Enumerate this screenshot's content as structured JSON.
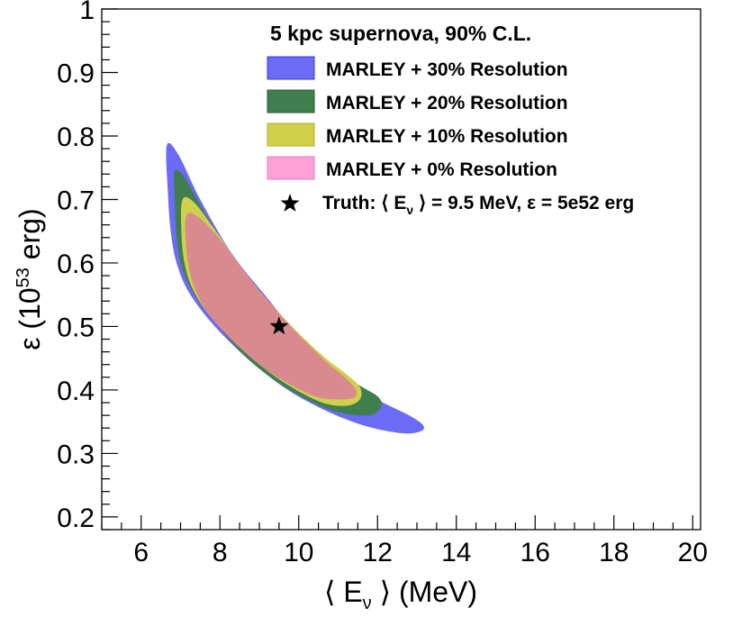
{
  "chart_data": {
    "type": "contour",
    "title": "5 kpc supernova, 90% C.L.",
    "xlabel_open": "⟨ E",
    "xlabel_sub": "ν",
    "xlabel_close": " ⟩ (MeV)",
    "ylabel_base": "ε (10",
    "ylabel_sup": "53",
    "ylabel_unit": " erg)",
    "xlim": [
      5,
      20.2
    ],
    "ylim": [
      0.18,
      1.0
    ],
    "xticks": [
      6,
      8,
      10,
      12,
      14,
      16,
      18,
      20
    ],
    "xtick_labels": [
      "6",
      "8",
      "10",
      "12",
      "14",
      "16",
      "18",
      "20"
    ],
    "yticks": [
      0.2,
      0.3,
      0.4,
      0.5,
      0.6,
      0.7,
      0.8,
      0.9,
      1.0
    ],
    "ytick_labels": [
      "0.2",
      "0.3",
      "0.4",
      "0.5",
      "0.6",
      "0.7",
      "0.8",
      "0.9",
      "1"
    ],
    "grid": false,
    "legend_position": "top-right",
    "series": [
      {
        "name": "MARLEY + 30% Resolution",
        "color": "#6b6bf7",
        "contour": [
          [
            6.65,
            0.785
          ],
          [
            6.95,
            0.77
          ],
          [
            7.5,
            0.7
          ],
          [
            8.3,
            0.615
          ],
          [
            9.2,
            0.545
          ],
          [
            10.2,
            0.47
          ],
          [
            11.2,
            0.42
          ],
          [
            12.0,
            0.385
          ],
          [
            12.8,
            0.36
          ],
          [
            13.15,
            0.345
          ],
          [
            13.1,
            0.335
          ],
          [
            12.6,
            0.332
          ],
          [
            11.6,
            0.345
          ],
          [
            10.6,
            0.37
          ],
          [
            9.6,
            0.405
          ],
          [
            8.6,
            0.455
          ],
          [
            7.8,
            0.505
          ],
          [
            7.2,
            0.555
          ],
          [
            6.9,
            0.6
          ],
          [
            6.75,
            0.65
          ],
          [
            6.68,
            0.71
          ]
        ]
      },
      {
        "name": "MARLEY + 20% Resolution",
        "color": "#3f7f4f",
        "contour": [
          [
            6.85,
            0.745
          ],
          [
            7.1,
            0.735
          ],
          [
            7.6,
            0.68
          ],
          [
            8.4,
            0.605
          ],
          [
            9.3,
            0.535
          ],
          [
            10.2,
            0.475
          ],
          [
            11.0,
            0.43
          ],
          [
            11.6,
            0.405
          ],
          [
            12.0,
            0.39
          ],
          [
            12.1,
            0.375
          ],
          [
            11.8,
            0.36
          ],
          [
            11.0,
            0.365
          ],
          [
            10.2,
            0.385
          ],
          [
            9.4,
            0.415
          ],
          [
            8.6,
            0.455
          ],
          [
            7.9,
            0.505
          ],
          [
            7.4,
            0.545
          ],
          [
            7.05,
            0.59
          ],
          [
            6.9,
            0.64
          ],
          [
            6.85,
            0.7
          ]
        ]
      },
      {
        "name": "MARLEY + 10% Resolution",
        "color": "#d0d04a",
        "contour": [
          [
            7.05,
            0.7
          ],
          [
            7.35,
            0.695
          ],
          [
            7.9,
            0.65
          ],
          [
            8.7,
            0.58
          ],
          [
            9.6,
            0.515
          ],
          [
            10.5,
            0.46
          ],
          [
            11.2,
            0.425
          ],
          [
            11.55,
            0.405
          ],
          [
            11.55,
            0.385
          ],
          [
            11.2,
            0.375
          ],
          [
            10.6,
            0.38
          ],
          [
            9.8,
            0.405
          ],
          [
            9.0,
            0.44
          ],
          [
            8.3,
            0.48
          ],
          [
            7.7,
            0.52
          ],
          [
            7.3,
            0.56
          ],
          [
            7.1,
            0.6
          ],
          [
            7.02,
            0.65
          ]
        ]
      },
      {
        "name": "MARLEY + 0% Resolution",
        "color": "#d88a8f",
        "legend_color": "#ff9fd6",
        "contour": [
          [
            7.15,
            0.675
          ],
          [
            7.5,
            0.67
          ],
          [
            8.1,
            0.63
          ],
          [
            8.9,
            0.565
          ],
          [
            9.8,
            0.5
          ],
          [
            10.6,
            0.45
          ],
          [
            11.2,
            0.418
          ],
          [
            11.45,
            0.4
          ],
          [
            11.4,
            0.388
          ],
          [
            11.0,
            0.385
          ],
          [
            10.4,
            0.39
          ],
          [
            9.6,
            0.415
          ],
          [
            8.9,
            0.445
          ],
          [
            8.2,
            0.485
          ],
          [
            7.65,
            0.525
          ],
          [
            7.3,
            0.57
          ],
          [
            7.15,
            0.62
          ]
        ]
      }
    ],
    "truth": {
      "x": 9.5,
      "y": 0.5,
      "label_prefix": "Truth: ⟨ E",
      "label_sub": "ν",
      "label_suffix": " ⟩ = 9.5 MeV, ε = 5e52 erg"
    }
  }
}
